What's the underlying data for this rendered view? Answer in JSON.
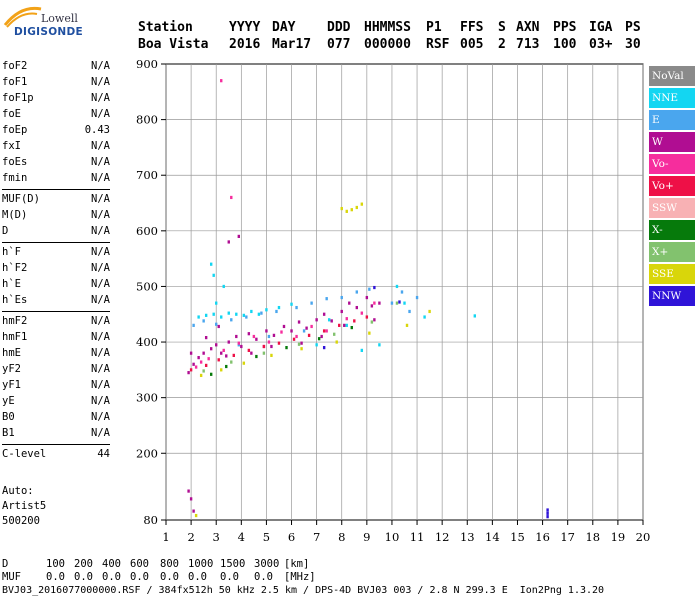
{
  "logo": {
    "line1": "Lowell",
    "line2": "DIGISONDE"
  },
  "header": {
    "row1": [
      "Station",
      "YYYY",
      "DAY",
      "DDD",
      "HHMMSS",
      "P1",
      "FFS",
      "S",
      "AXN",
      "PPS",
      "IGA",
      "PS"
    ],
    "row2": [
      "Boa Vista",
      "2016",
      "Mar17",
      "077",
      "000000",
      "RSF",
      "005",
      "2",
      "713",
      "100",
      "03+",
      "30"
    ]
  },
  "params": {
    "group1": [
      {
        "label": "foF2",
        "value": "N/A"
      },
      {
        "label": "foF1",
        "value": "N/A"
      },
      {
        "label": "foF1p",
        "value": "N/A"
      },
      {
        "label": "foE",
        "value": "N/A"
      },
      {
        "label": "foEp",
        "value": "0.43"
      },
      {
        "label": "fxI",
        "value": "N/A"
      },
      {
        "label": "foEs",
        "value": "N/A"
      },
      {
        "label": "fmin",
        "value": "N/A"
      }
    ],
    "group2": [
      {
        "label": "MUF(D)",
        "value": "N/A"
      },
      {
        "label": "M(D)",
        "value": "N/A"
      },
      {
        "label": "D",
        "value": "N/A"
      }
    ],
    "group3": [
      {
        "label": "h`F",
        "value": "N/A"
      },
      {
        "label": "h`F2",
        "value": "N/A"
      },
      {
        "label": "h`E",
        "value": "N/A"
      },
      {
        "label": "h`Es",
        "value": "N/A"
      }
    ],
    "group4": [
      {
        "label": "hmF2",
        "value": "N/A"
      },
      {
        "label": "hmF1",
        "value": "N/A"
      },
      {
        "label": "hmE",
        "value": "N/A"
      },
      {
        "label": "yF2",
        "value": "N/A"
      },
      {
        "label": "yF1",
        "value": "N/A"
      },
      {
        "label": "yE",
        "value": "N/A"
      },
      {
        "label": "B0",
        "value": "N/A"
      },
      {
        "label": "B1",
        "value": "N/A"
      }
    ],
    "group5": [
      {
        "label": "C-level",
        "value": "44"
      }
    ]
  },
  "auto": {
    "line1": "Auto:",
    "line2": "Artist5",
    "line3": "500200"
  },
  "legend": [
    {
      "label": "NoVal",
      "color": "#8a8a8a"
    },
    {
      "label": "NNE",
      "color": "#13d6f2"
    },
    {
      "label": "E",
      "color": "#4aa6ee"
    },
    {
      "label": "W",
      "color": "#b00d92"
    },
    {
      "label": "Vo-",
      "color": "#f62d9d"
    },
    {
      "label": "Vo+",
      "color": "#ee1047"
    },
    {
      "label": "SSW",
      "color": "#f8b1b4"
    },
    {
      "label": "X-",
      "color": "#067a0b"
    },
    {
      "label": "X+",
      "color": "#82c26e"
    },
    {
      "label": "SSE",
      "color": "#d9d60a"
    },
    {
      "label": "NNW",
      "color": "#2f14d8"
    }
  ],
  "footer": {
    "d_label": "D",
    "d_values": [
      "100",
      "200",
      "400",
      "600",
      "800",
      "1000",
      "1500",
      "3000",
      "[km]"
    ],
    "muf_label": "MUF",
    "muf_values": [
      "0.0",
      "0.0",
      "0.0",
      "0.0",
      "0.0",
      "0.0",
      "0.0",
      "0.0",
      "[MHz]"
    ],
    "file_line": "BVJ03_2016077000000.RSF / 384fx512h 50 kHz 2.5 km / DPS-4D BVJ03 003 / 2.8 N 299.3 E  Ion2Png 1.3.20"
  },
  "chart_data": {
    "type": "scatter",
    "title": "",
    "xlabel": "",
    "ylabel": "",
    "xlim": [
      1,
      20
    ],
    "ylim": [
      80,
      900
    ],
    "x_ticks": [
      1,
      2,
      3,
      4,
      5,
      6,
      7,
      8,
      9,
      10,
      11,
      12,
      13,
      14,
      15,
      16,
      17,
      18,
      19,
      20
    ],
    "y_ticks": [
      80,
      200,
      300,
      400,
      500,
      600,
      700,
      800,
      900
    ],
    "grid": true,
    "legend_position": "right",
    "series": [
      {
        "name": "NNE",
        "color": "#13d6f2",
        "points": [
          [
            2.3,
            445
          ],
          [
            2.6,
            448
          ],
          [
            2.9,
            450
          ],
          [
            3.2,
            445
          ],
          [
            3.5,
            452
          ],
          [
            3.8,
            450
          ],
          [
            4.1,
            448
          ],
          [
            4.4,
            455
          ],
          [
            4.7,
            450
          ],
          [
            5.0,
            458
          ],
          [
            2.8,
            540
          ],
          [
            2.9,
            520
          ],
          [
            3.0,
            470
          ],
          [
            3.3,
            500
          ],
          [
            5.5,
            462
          ],
          [
            6.0,
            468
          ],
          [
            7.5,
            440
          ],
          [
            8.2,
            430
          ],
          [
            9.5,
            395
          ],
          [
            10.5,
            470
          ],
          [
            11.3,
            445
          ],
          [
            13.3,
            447
          ],
          [
            10.2,
            500
          ],
          [
            7.0,
            395
          ],
          [
            8.8,
            385
          ]
        ]
      },
      {
        "name": "E",
        "color": "#4aa6ee",
        "points": [
          [
            2.1,
            430
          ],
          [
            2.5,
            438
          ],
          [
            3.0,
            432
          ],
          [
            3.6,
            440
          ],
          [
            4.2,
            445
          ],
          [
            4.8,
            452
          ],
          [
            5.4,
            455
          ],
          [
            6.2,
            462
          ],
          [
            6.8,
            470
          ],
          [
            7.4,
            478
          ],
          [
            8.0,
            480
          ],
          [
            8.6,
            490
          ],
          [
            9.1,
            495
          ],
          [
            10.0,
            470
          ],
          [
            10.4,
            490
          ],
          [
            10.7,
            455
          ],
          [
            11.0,
            480
          ],
          [
            3.9,
            395
          ],
          [
            5.1,
            410
          ],
          [
            6.5,
            420
          ]
        ]
      },
      {
        "name": "W",
        "color": "#b00d92",
        "points": [
          [
            1.9,
            345
          ],
          [
            2.1,
            360
          ],
          [
            2.3,
            372
          ],
          [
            2.5,
            380
          ],
          [
            2.8,
            388
          ],
          [
            3.0,
            395
          ],
          [
            3.2,
            380
          ],
          [
            3.5,
            400
          ],
          [
            3.8,
            410
          ],
          [
            4.0,
            392
          ],
          [
            4.3,
            415
          ],
          [
            4.6,
            405
          ],
          [
            5.0,
            420
          ],
          [
            5.3,
            412
          ],
          [
            5.7,
            428
          ],
          [
            6.0,
            420
          ],
          [
            6.3,
            436
          ],
          [
            6.6,
            425
          ],
          [
            7.0,
            440
          ],
          [
            7.3,
            450
          ],
          [
            7.6,
            438
          ],
          [
            8.0,
            455
          ],
          [
            8.3,
            470
          ],
          [
            8.6,
            462
          ],
          [
            9.0,
            480
          ],
          [
            9.2,
            465
          ],
          [
            9.5,
            470
          ],
          [
            2.0,
            380
          ],
          [
            2.6,
            408
          ],
          [
            3.1,
            428
          ],
          [
            3.4,
            375
          ],
          [
            4.4,
            380
          ],
          [
            5.2,
            392
          ],
          [
            6.4,
            398
          ],
          [
            7.2,
            410
          ],
          [
            8.1,
            430
          ],
          [
            9.3,
            440
          ],
          [
            1.9,
            132
          ],
          [
            2.0,
            118
          ],
          [
            3.5,
            580
          ],
          [
            3.9,
            590
          ],
          [
            2.1,
            96
          ]
        ]
      },
      {
        "name": "Vo-",
        "color": "#f62d9d",
        "points": [
          [
            2.2,
            355
          ],
          [
            2.7,
            370
          ],
          [
            3.3,
            385
          ],
          [
            3.9,
            398
          ],
          [
            4.5,
            410
          ],
          [
            5.1,
            400
          ],
          [
            5.6,
            418
          ],
          [
            6.2,
            410
          ],
          [
            6.8,
            428
          ],
          [
            7.4,
            420
          ],
          [
            8.2,
            442
          ],
          [
            8.8,
            452
          ],
          [
            9.3,
            470
          ],
          [
            3.6,
            660
          ],
          [
            3.2,
            870
          ],
          [
            2.4,
            364
          ],
          [
            4.9,
            392
          ]
        ]
      },
      {
        "name": "Vo+",
        "color": "#ee1047",
        "points": [
          [
            2.0,
            350
          ],
          [
            2.6,
            358
          ],
          [
            3.1,
            368
          ],
          [
            3.7,
            376
          ],
          [
            4.3,
            385
          ],
          [
            4.9,
            392
          ],
          [
            5.5,
            398
          ],
          [
            6.1,
            405
          ],
          [
            6.7,
            412
          ],
          [
            7.3,
            420
          ],
          [
            7.9,
            430
          ],
          [
            8.5,
            438
          ],
          [
            9.0,
            445
          ]
        ]
      },
      {
        "name": "X-",
        "color": "#067a0b",
        "points": [
          [
            2.8,
            342
          ],
          [
            3.4,
            356
          ],
          [
            4.6,
            374
          ],
          [
            5.8,
            390
          ],
          [
            7.1,
            406
          ],
          [
            8.4,
            426
          ]
        ]
      },
      {
        "name": "X+",
        "color": "#82c26e",
        "points": [
          [
            2.5,
            348
          ],
          [
            3.6,
            364
          ],
          [
            4.9,
            380
          ],
          [
            6.3,
            396
          ],
          [
            7.7,
            414
          ],
          [
            9.2,
            436
          ],
          [
            10.2,
            470
          ]
        ]
      },
      {
        "name": "SSE",
        "color": "#d9d60a",
        "points": [
          [
            2.4,
            340
          ],
          [
            3.2,
            350
          ],
          [
            4.1,
            362
          ],
          [
            5.2,
            376
          ],
          [
            6.4,
            388
          ],
          [
            7.8,
            400
          ],
          [
            8.0,
            640
          ],
          [
            8.2,
            635
          ],
          [
            8.4,
            638
          ],
          [
            8.6,
            642
          ],
          [
            8.8,
            648
          ],
          [
            9.1,
            416
          ],
          [
            10.6,
            430
          ],
          [
            11.5,
            455
          ],
          [
            2.2,
            88
          ]
        ]
      },
      {
        "name": "NNW",
        "color": "#2f14d8",
        "points": [
          [
            16.2,
            86
          ],
          [
            16.2,
            92
          ],
          [
            16.2,
            98
          ],
          [
            7.3,
            390
          ],
          [
            9.3,
            498
          ],
          [
            10.3,
            472
          ]
        ]
      }
    ]
  }
}
